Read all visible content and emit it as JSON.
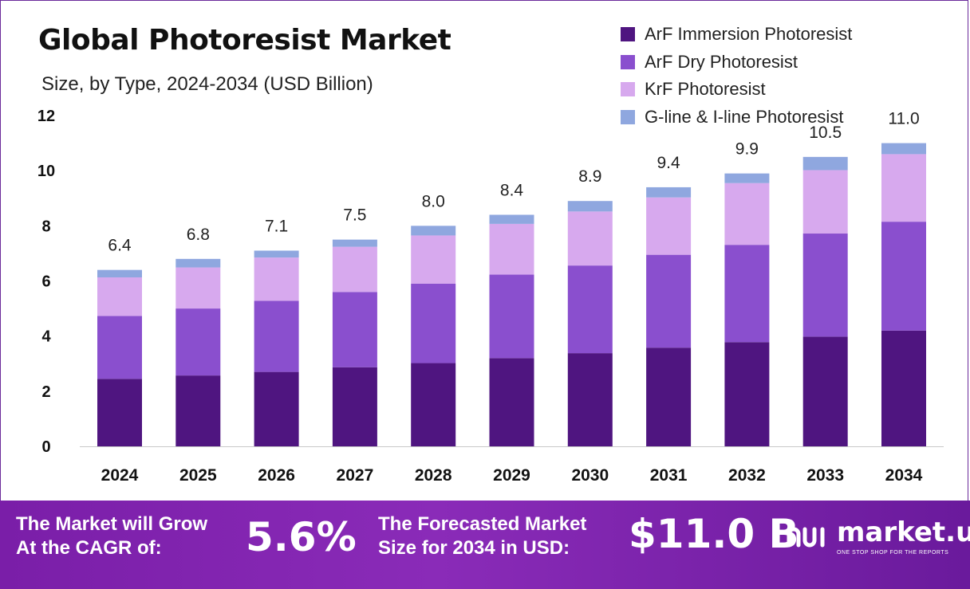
{
  "title": "Global Photoresist Market",
  "subtitle": "Size, by Type, 2024-2034 (USD Billion)",
  "colors": {
    "arf_immersion": "#4f1580",
    "arf_dry": "#8a4fce",
    "krf": "#d7a9ee",
    "gline": "#8fa7df",
    "footer": "#7a1ea8"
  },
  "chart_data": {
    "type": "bar",
    "stacked": true,
    "categories": [
      "2024",
      "2025",
      "2026",
      "2027",
      "2028",
      "2029",
      "2030",
      "2031",
      "2032",
      "2033",
      "2034"
    ],
    "series": [
      {
        "name": "ArF Immersion Photoresist",
        "values": [
          2.45,
          2.57,
          2.7,
          2.87,
          3.02,
          3.2,
          3.38,
          3.58,
          3.78,
          3.98,
          4.2
        ]
      },
      {
        "name": "ArF Dry Photoresist",
        "values": [
          2.28,
          2.43,
          2.58,
          2.73,
          2.88,
          3.03,
          3.18,
          3.37,
          3.53,
          3.74,
          3.95
        ]
      },
      {
        "name": "KrF Photoresist",
        "values": [
          1.4,
          1.49,
          1.57,
          1.64,
          1.75,
          1.84,
          1.96,
          2.08,
          2.24,
          2.3,
          2.45
        ]
      },
      {
        "name": "G-line & I-line Photoresist",
        "values": [
          0.27,
          0.31,
          0.25,
          0.26,
          0.35,
          0.33,
          0.38,
          0.37,
          0.35,
          0.48,
          0.4
        ]
      }
    ],
    "totals": [
      "6.4",
      "6.8",
      "7.1",
      "7.5",
      "8.0",
      "8.4",
      "8.9",
      "9.4",
      "9.9",
      "10.5",
      "11.0"
    ],
    "yticks": [
      0,
      2,
      4,
      6,
      8,
      10,
      12
    ],
    "ylim": [
      0,
      12
    ],
    "legend": "top-right",
    "grid": false
  },
  "footer": {
    "cagr_label_1": "The Market will Grow",
    "cagr_label_2": "At the CAGR of:",
    "cagr_value": "5.6%",
    "forecast_label_1": "The Forecasted Market",
    "forecast_label_2": "Size for 2034 in USD:",
    "forecast_value": "$11.0 B"
  },
  "brand": {
    "name": "market.us",
    "tagline": "ONE STOP SHOP FOR THE REPORTS",
    "logo_icon": "market-us-logo-icon"
  }
}
